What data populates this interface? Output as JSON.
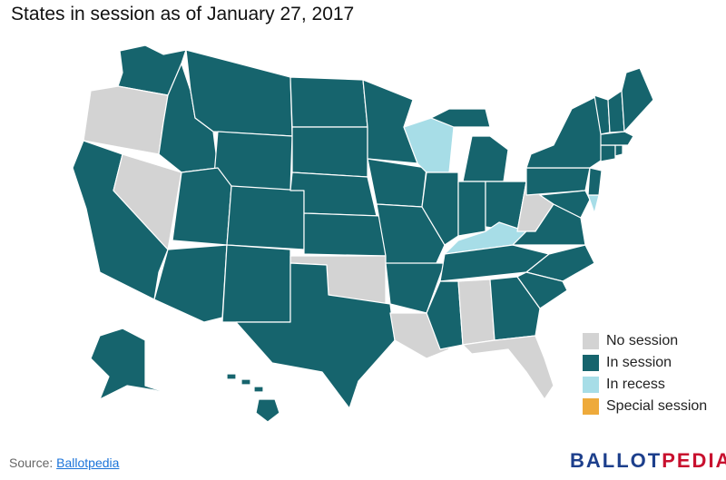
{
  "title": "States in session as of January 27, 2017",
  "colors": {
    "no_session": "#d3d3d3",
    "in_session": "#16646d",
    "in_recess": "#a7dde7",
    "special_session": "#eeaa3b",
    "border": "#ffffff"
  },
  "legend": [
    {
      "label": "No session",
      "color": "#d3d3d3"
    },
    {
      "label": "In session",
      "color": "#16646d"
    },
    {
      "label": "In recess",
      "color": "#a7dde7"
    },
    {
      "label": "Special session",
      "color": "#eeaa3b"
    }
  ],
  "source": {
    "prefix": "Source: ",
    "link": "Ballotpedia"
  },
  "brand": {
    "part1": "BALLOT",
    "part2": "PEDIA",
    "color1": "#1d3f8c",
    "color2": "#c8102e"
  },
  "states": {
    "no_session": [
      "Oregon",
      "Nevada",
      "Oklahoma",
      "Louisiana",
      "Alabama",
      "Florida",
      "West Virginia"
    ],
    "in_recess": [
      "Wisconsin",
      "Kentucky",
      "Delaware"
    ],
    "special_session": []
  }
}
